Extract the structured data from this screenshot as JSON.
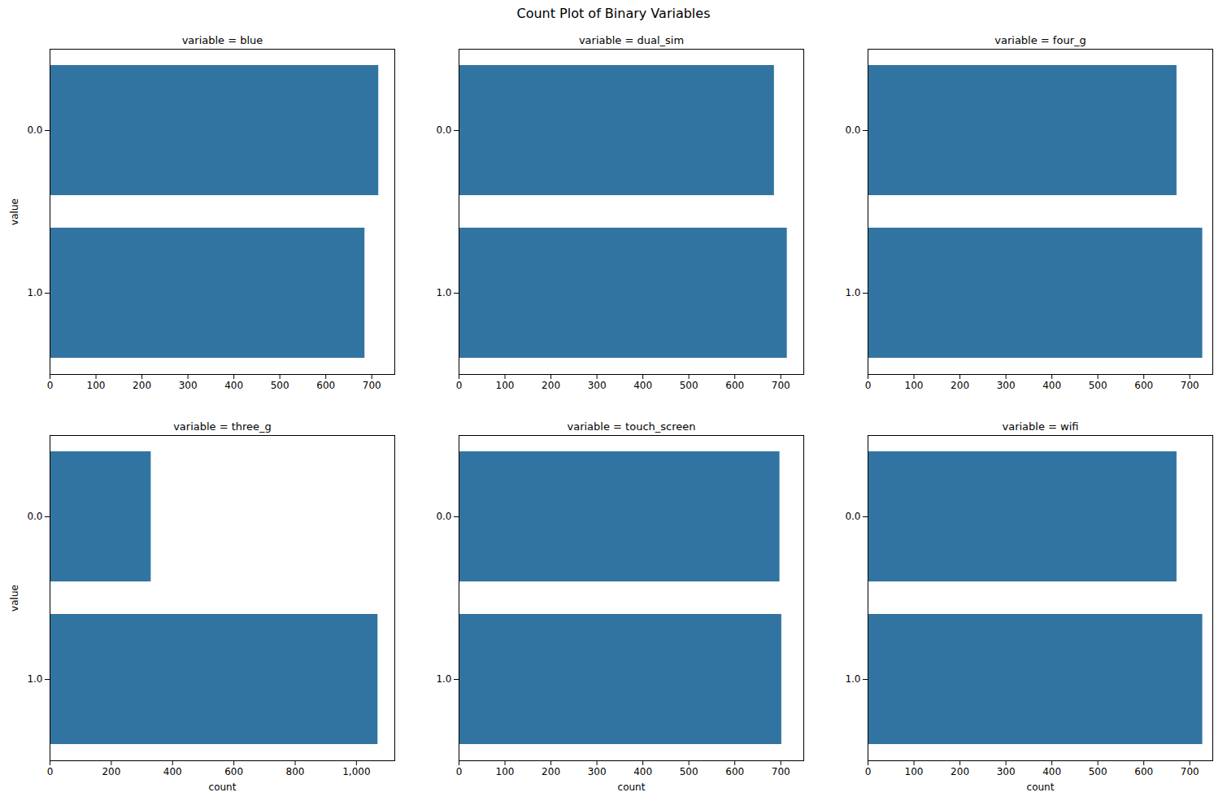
{
  "title": "Count Plot of Binary Variables",
  "chart_data": [
    {
      "type": "bar",
      "orientation": "horizontal",
      "title": "variable = blue",
      "ylabel": "value",
      "categories": [
        "0.0",
        "1.0"
      ],
      "values": [
        715,
        685
      ],
      "color": "#3274a1",
      "xlim": [
        0,
        750
      ],
      "xticks": [
        0,
        100,
        200,
        300,
        400,
        500,
        600,
        700
      ]
    },
    {
      "type": "bar",
      "orientation": "horizontal",
      "title": "variable = dual_sim",
      "categories": [
        "0.0",
        "1.0"
      ],
      "values": [
        686,
        714
      ],
      "color": "#3274a1",
      "xlim": [
        0,
        750
      ],
      "xticks": [
        0,
        100,
        200,
        300,
        400,
        500,
        600,
        700
      ]
    },
    {
      "type": "bar",
      "orientation": "horizontal",
      "title": "variable = four_g",
      "categories": [
        "0.0",
        "1.0"
      ],
      "values": [
        672,
        728
      ],
      "color": "#3274a1",
      "xlim": [
        0,
        750
      ],
      "xticks": [
        0,
        100,
        200,
        300,
        400,
        500,
        600,
        700
      ]
    },
    {
      "type": "bar",
      "orientation": "horizontal",
      "title": "variable = three_g",
      "ylabel": "value",
      "xlabel": "count",
      "categories": [
        "0.0",
        "1.0"
      ],
      "values": [
        330,
        1070
      ],
      "color": "#3274a1",
      "xlim": [
        0,
        1125
      ],
      "xticks": [
        0,
        200,
        400,
        600,
        800,
        1000
      ]
    },
    {
      "type": "bar",
      "orientation": "horizontal",
      "title": "variable = touch_screen",
      "xlabel": "count",
      "categories": [
        "0.0",
        "1.0"
      ],
      "values": [
        698,
        702
      ],
      "color": "#3274a1",
      "xlim": [
        0,
        750
      ],
      "xticks": [
        0,
        100,
        200,
        300,
        400,
        500,
        600,
        700
      ]
    },
    {
      "type": "bar",
      "orientation": "horizontal",
      "title": "variable = wifi",
      "xlabel": "count",
      "categories": [
        "0.0",
        "1.0"
      ],
      "values": [
        672,
        728
      ],
      "color": "#3274a1",
      "xlim": [
        0,
        750
      ],
      "xticks": [
        0,
        100,
        200,
        300,
        400,
        500,
        600,
        700
      ]
    }
  ]
}
